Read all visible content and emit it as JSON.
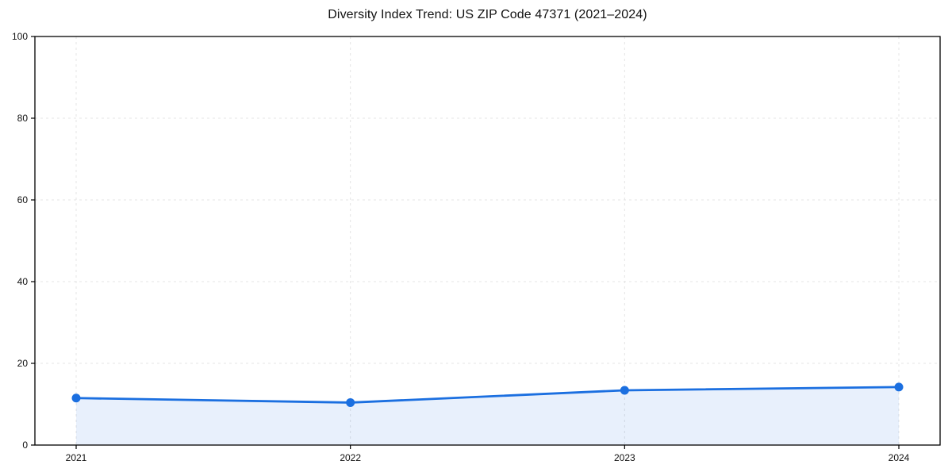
{
  "page": {
    "background": "#ffffff"
  },
  "chart_data": {
    "type": "area",
    "title": "Diversity Index Trend: US ZIP Code 47371 (2021–2024)",
    "categories": [
      "2021",
      "2022",
      "2023",
      "2024"
    ],
    "series": [
      {
        "name": "Diversity Index",
        "values": [
          11.5,
          10.4,
          13.4,
          14.2
        ]
      }
    ],
    "xlabel": "",
    "ylabel": "",
    "ylim": [
      0,
      100
    ],
    "yticks": [
      0,
      20,
      40,
      60,
      80,
      100
    ],
    "grid": true,
    "grid_style": "dashed",
    "legend_position": "none",
    "colors": {
      "line": "#1b6fe0",
      "marker": "#1b6fe0",
      "fill": "rgba(27, 111, 224, 0.10)",
      "grid": "#e4e4e4",
      "spine": "#000000",
      "tick_text": "#111111",
      "title_text": "#111111",
      "background": "#ffffff"
    },
    "marker_shape": "circle",
    "line_width": 2.8,
    "marker_radius": 5.5
  }
}
